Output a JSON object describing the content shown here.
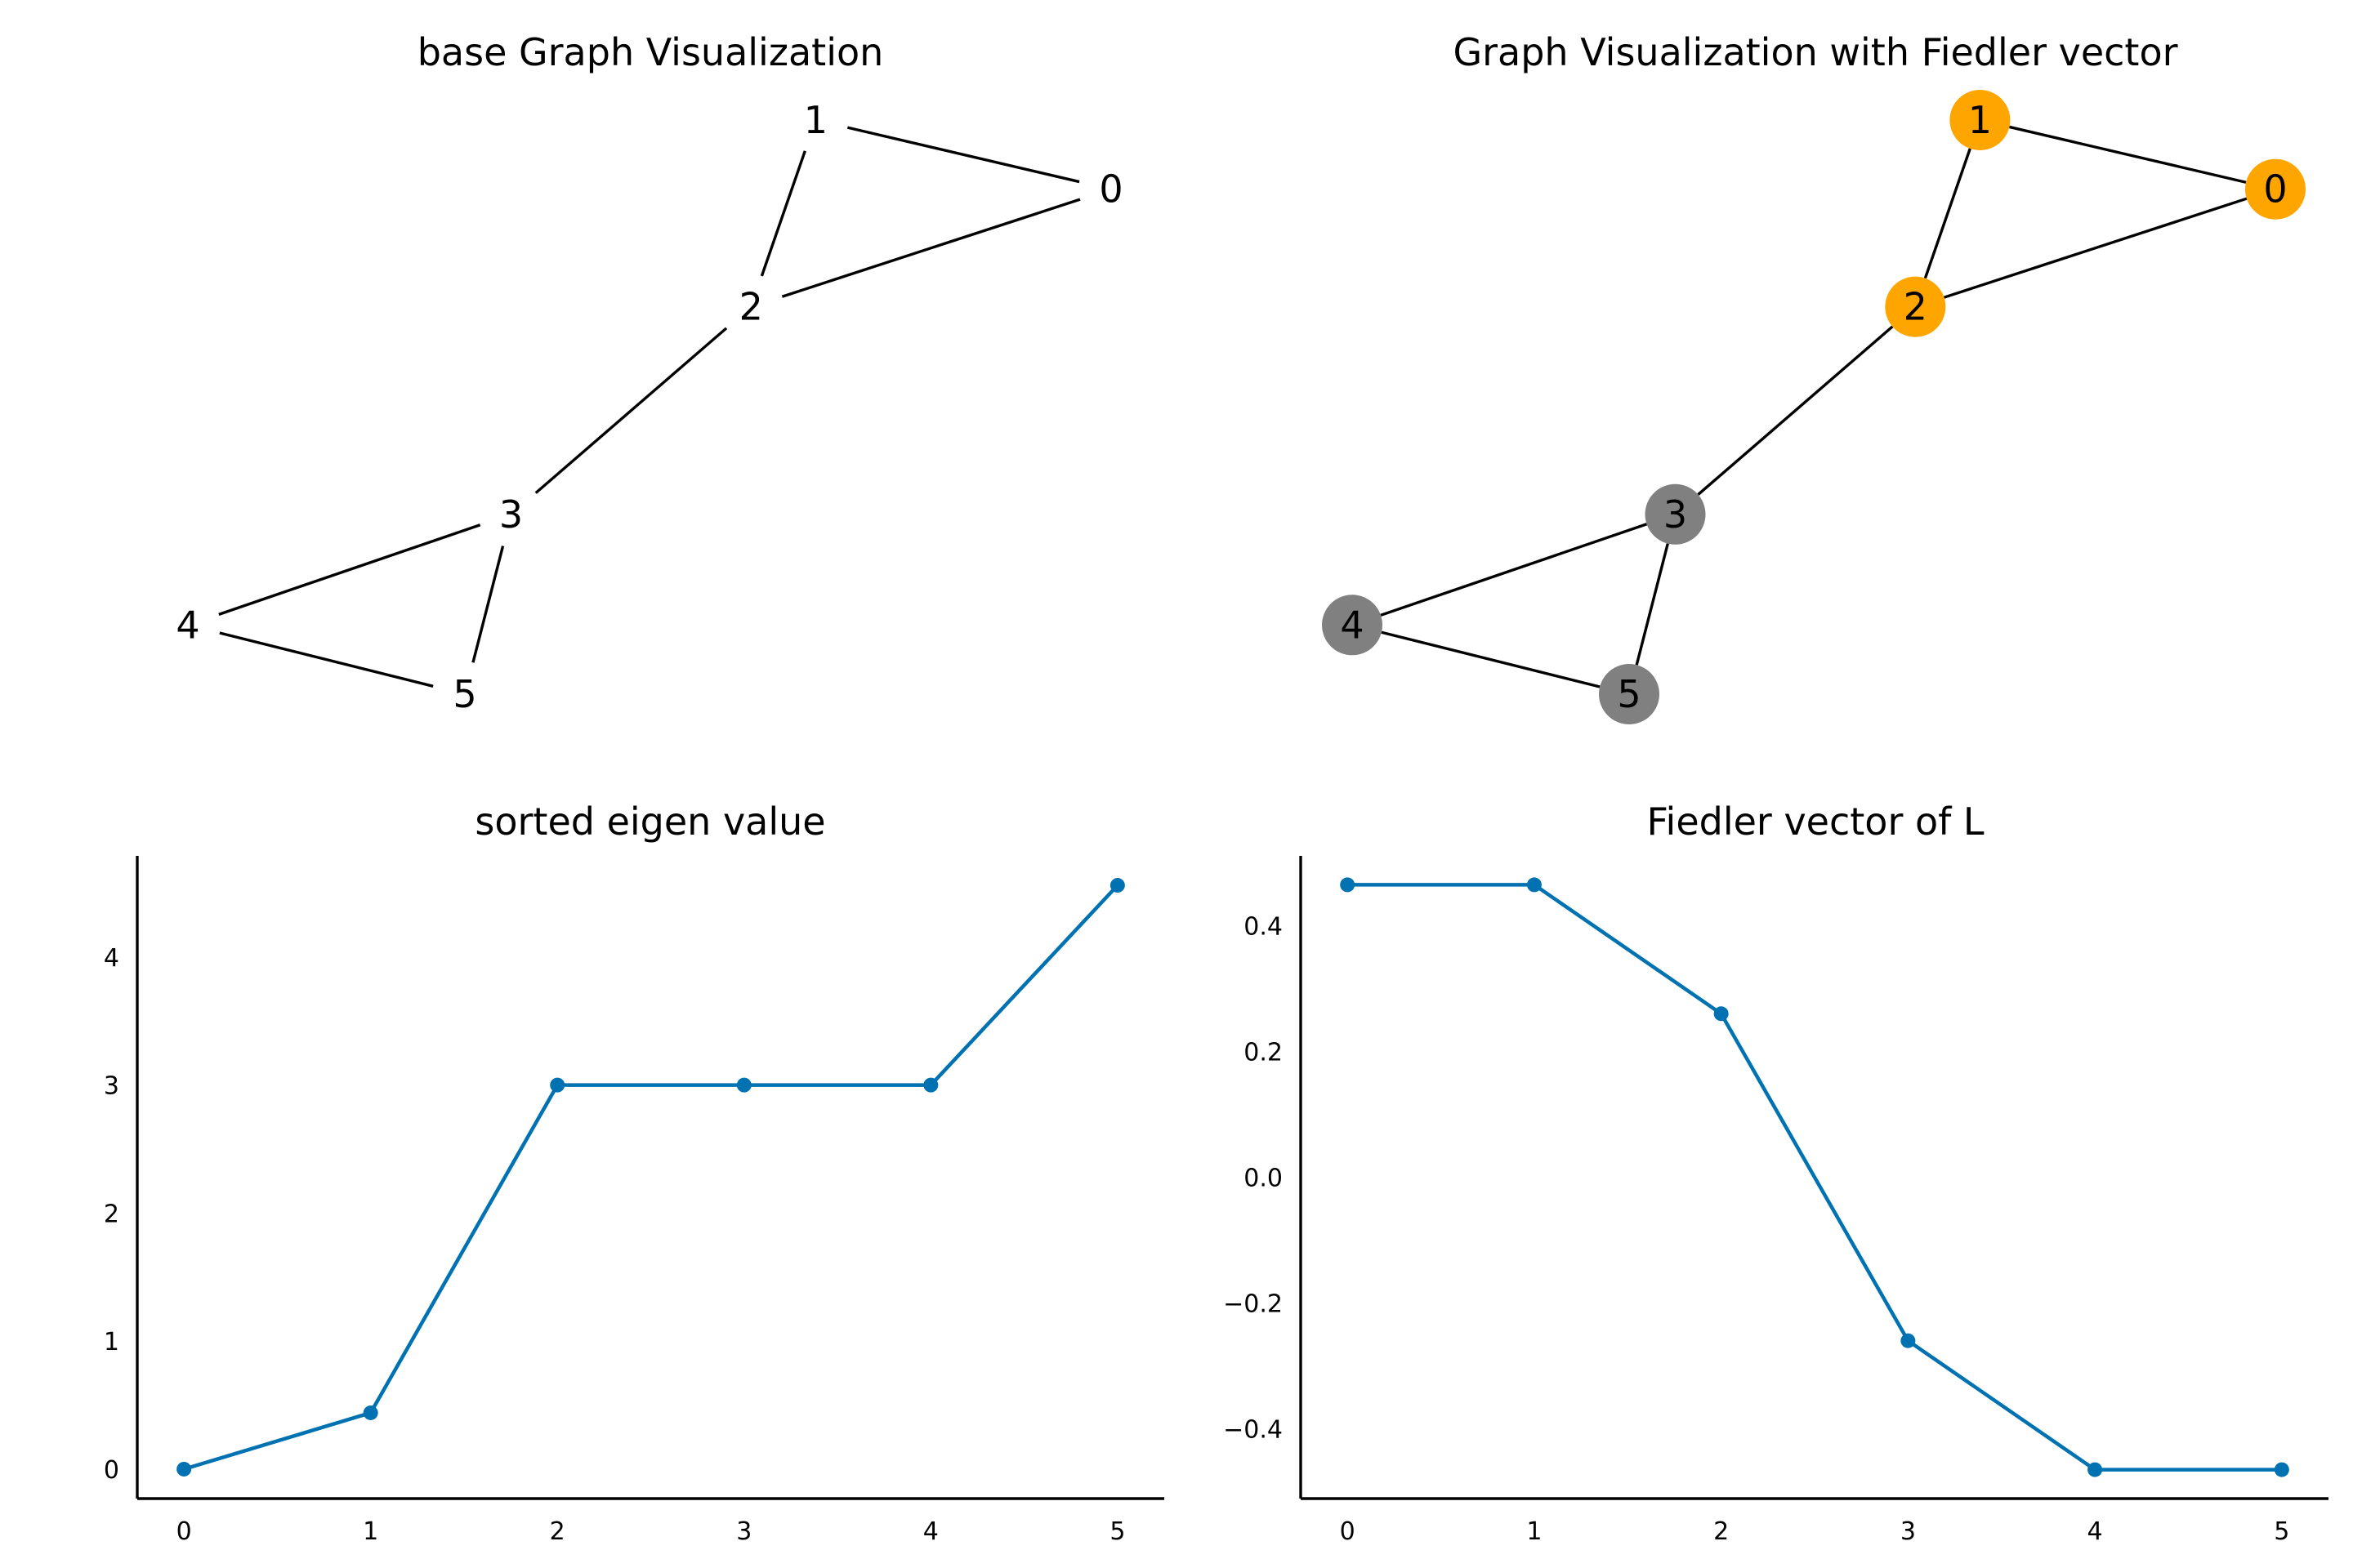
{
  "chart_data": [
    {
      "type": "network",
      "title": "base Graph Visualization",
      "nodes": [
        {
          "id": "0",
          "label": "0",
          "pos": [
            0.9,
            0.9
          ]
        },
        {
          "id": "1",
          "label": "1",
          "pos": [
            0.58,
            1.0
          ]
        },
        {
          "id": "2",
          "label": "2",
          "pos": [
            0.51,
            0.73
          ]
        },
        {
          "id": "3",
          "label": "3",
          "pos": [
            0.25,
            0.43
          ]
        },
        {
          "id": "4",
          "label": "4",
          "pos": [
            -0.1,
            0.27
          ]
        },
        {
          "id": "5",
          "label": "5",
          "pos": [
            0.2,
            0.17
          ]
        }
      ],
      "edges": [
        [
          "0",
          "1"
        ],
        [
          "0",
          "2"
        ],
        [
          "1",
          "2"
        ],
        [
          "2",
          "3"
        ],
        [
          "3",
          "4"
        ],
        [
          "3",
          "5"
        ],
        [
          "4",
          "5"
        ]
      ]
    },
    {
      "type": "network",
      "title": "Graph Visualization with Fiedler vector",
      "nodes": [
        {
          "id": "0",
          "label": "0",
          "pos": [
            0.9,
            0.9
          ],
          "group": "orange"
        },
        {
          "id": "1",
          "label": "1",
          "pos": [
            0.58,
            1.0
          ],
          "group": "orange"
        },
        {
          "id": "2",
          "label": "2",
          "pos": [
            0.51,
            0.73
          ],
          "group": "orange"
        },
        {
          "id": "3",
          "label": "3",
          "pos": [
            0.25,
            0.43
          ],
          "group": "gray"
        },
        {
          "id": "4",
          "label": "4",
          "pos": [
            -0.1,
            0.27
          ],
          "group": "gray"
        },
        {
          "id": "5",
          "label": "5",
          "pos": [
            0.2,
            0.17
          ],
          "group": "gray"
        }
      ],
      "edges": [
        [
          "0",
          "1"
        ],
        [
          "0",
          "2"
        ],
        [
          "1",
          "2"
        ],
        [
          "2",
          "3"
        ],
        [
          "3",
          "4"
        ],
        [
          "3",
          "5"
        ],
        [
          "4",
          "5"
        ]
      ],
      "colors": {
        "orange": "#ffa500",
        "gray": "#808080"
      }
    },
    {
      "type": "line",
      "title": "sorted eigen value",
      "x": [
        0,
        1,
        2,
        3,
        4,
        5
      ],
      "values": [
        0.0,
        0.44,
        3.0,
        3.0,
        3.0,
        4.56
      ],
      "xticks": [
        "0",
        "1",
        "2",
        "3",
        "4",
        "5"
      ],
      "yticks": [
        "0",
        "1",
        "2",
        "3",
        "4"
      ],
      "xlim": [
        -0.25,
        5.25
      ],
      "ylim": [
        -0.23,
        4.79
      ],
      "color": "#0072b2",
      "markers": true
    },
    {
      "type": "line",
      "title": "Fiedler vector of L",
      "x": [
        0,
        1,
        2,
        3,
        4,
        5
      ],
      "values": [
        0.465,
        0.465,
        0.26,
        -0.26,
        -0.465,
        -0.465
      ],
      "xticks": [
        "0",
        "1",
        "2",
        "3",
        "4",
        "5"
      ],
      "yticks": [
        "0.4",
        "0.2",
        "0.0",
        "−0.2",
        "−0.4"
      ],
      "xlim": [
        -0.25,
        5.25
      ],
      "ylim": [
        -0.511,
        0.511
      ],
      "color": "#0072b2",
      "markers": true
    }
  ]
}
